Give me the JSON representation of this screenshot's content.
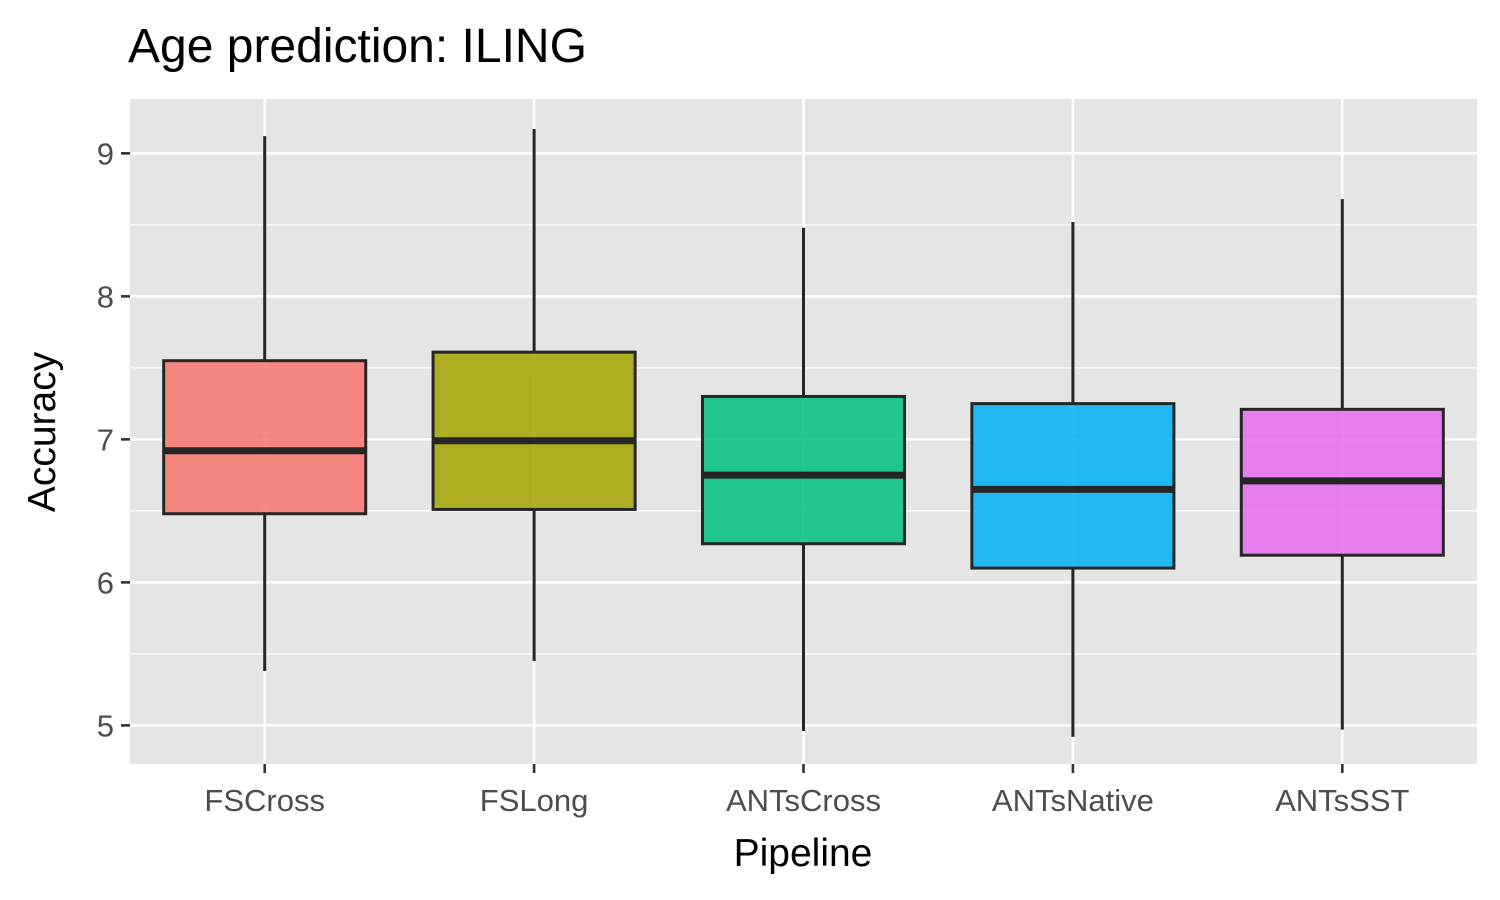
{
  "chart_data": {
    "type": "boxplot",
    "title": "Age prediction: ILING",
    "xlabel": "Pipeline",
    "ylabel": "Accuracy",
    "ylim": [
      4.73,
      9.38
    ],
    "yticks": [
      5,
      6,
      7,
      8,
      9
    ],
    "grid": true,
    "legend": "none",
    "categories": [
      "FSCross",
      "FSLong",
      "ANTsCross",
      "ANTsNative",
      "ANTsSST"
    ],
    "colors": [
      "#F8766D",
      "#A3A500",
      "#00BF7D",
      "#00B0F6",
      "#E76BF3"
    ],
    "boxes": [
      {
        "category": "FSCross",
        "min": 5.38,
        "q1": 6.48,
        "median": 6.92,
        "q3": 7.55,
        "max": 9.12
      },
      {
        "category": "FSLong",
        "min": 5.45,
        "q1": 6.51,
        "median": 6.99,
        "q3": 7.61,
        "max": 9.17
      },
      {
        "category": "ANTsCross",
        "min": 4.96,
        "q1": 6.27,
        "median": 6.75,
        "q3": 7.3,
        "max": 8.48
      },
      {
        "category": "ANTsNative",
        "min": 4.92,
        "q1": 6.1,
        "median": 6.65,
        "q3": 7.25,
        "max": 8.52
      },
      {
        "category": "ANTsSST",
        "min": 4.97,
        "q1": 6.19,
        "median": 6.71,
        "q3": 7.21,
        "max": 8.68
      }
    ]
  }
}
